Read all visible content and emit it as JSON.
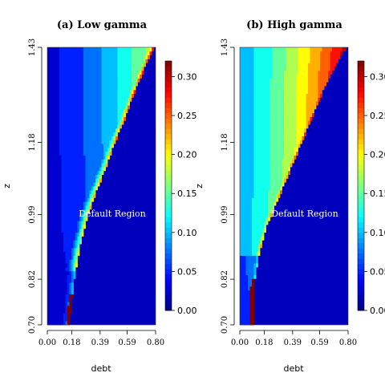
{
  "chart_data": [
    {
      "type": "heatmap",
      "title": "(a) Low gamma",
      "xlabel": "debt",
      "ylabel": "z",
      "x_ticks": [
        "0.00",
        "0.18",
        "0.39",
        "0.59",
        "0.80"
      ],
      "y_ticks": [
        "0.70",
        "0.82",
        "0.99",
        "1.18",
        "1.43"
      ],
      "xlim": [
        0.0,
        0.8
      ],
      "ylim": [
        0.7,
        1.43
      ],
      "annotation": "Default Region",
      "colorbar": {
        "ticks": [
          "0.00",
          "0.05",
          "0.10",
          "0.15",
          "0.20",
          "0.25",
          "0.30"
        ],
        "range": [
          0.0,
          0.32
        ],
        "colormap": "jet"
      },
      "default_boundary": [
        [
          0.16,
          0.7
        ],
        [
          0.18,
          0.76
        ],
        [
          0.2,
          0.82
        ],
        [
          0.22,
          0.87
        ],
        [
          0.25,
          0.92
        ],
        [
          0.3,
          0.99
        ],
        [
          0.36,
          1.05
        ],
        [
          0.43,
          1.11
        ],
        [
          0.5,
          1.18
        ],
        [
          0.57,
          1.24
        ],
        [
          0.63,
          1.3
        ],
        [
          0.7,
          1.36
        ],
        [
          0.76,
          1.41
        ],
        [
          0.79,
          1.43
        ]
      ],
      "surface": {
        "base": 0.03,
        "edge_peak": 0.3,
        "edge_width": 0.045,
        "top_right_peak": 0.18,
        "low_tail_z": 0.84
      }
    },
    {
      "type": "heatmap",
      "title": "(b) High gamma",
      "xlabel": "debt",
      "ylabel": "z",
      "x_ticks": [
        "0.00",
        "0.18",
        "0.39",
        "0.59",
        "0.80"
      ],
      "y_ticks": [
        "0.70",
        "0.82",
        "0.99",
        "1.18",
        "1.43"
      ],
      "xlim": [
        0.0,
        0.8
      ],
      "ylim": [
        0.7,
        1.43
      ],
      "annotation": "Default Region",
      "colorbar": {
        "ticks": [
          "0.00",
          "0.05",
          "0.10",
          "0.15",
          "0.20",
          "0.25",
          "0.30"
        ],
        "range": [
          0.0,
          0.32
        ],
        "colormap": "jet"
      },
      "default_boundary": [
        [
          0.1,
          0.7
        ],
        [
          0.1,
          0.8
        ],
        [
          0.12,
          0.84
        ],
        [
          0.15,
          0.9
        ],
        [
          0.2,
          0.96
        ],
        [
          0.27,
          1.02
        ],
        [
          0.34,
          1.08
        ],
        [
          0.41,
          1.14
        ],
        [
          0.48,
          1.2
        ],
        [
          0.55,
          1.26
        ],
        [
          0.61,
          1.31
        ],
        [
          0.68,
          1.36
        ],
        [
          0.75,
          1.41
        ],
        [
          0.79,
          1.43
        ]
      ],
      "surface": {
        "base": 0.1,
        "edge_peak": 0.32,
        "edge_width": 0.05,
        "top_right_peak": 0.3,
        "low_tail_z": 0.88
      }
    }
  ]
}
